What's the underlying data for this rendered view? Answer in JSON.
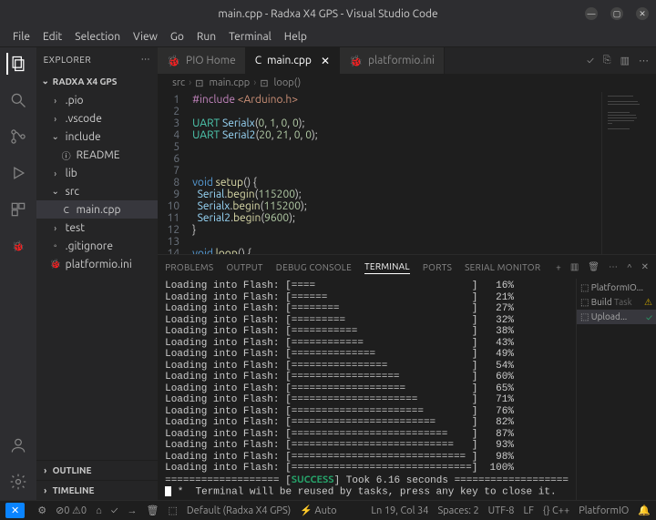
{
  "window": {
    "title": "main.cpp - Radxa X4 GPS - Visual Studio Code"
  },
  "menu": {
    "items": [
      "File",
      "Edit",
      "Selection",
      "View",
      "Go",
      "Run",
      "Terminal",
      "Help"
    ]
  },
  "sidebar": {
    "title": "EXPLORER",
    "project": "RADXA X4 GPS",
    "tree": [
      {
        "label": ".pio",
        "type": "folder",
        "chev": "›"
      },
      {
        "label": ".vscode",
        "type": "folder",
        "chev": "›"
      },
      {
        "label": "include",
        "type": "folder",
        "chev": "⌄",
        "icon": "📁"
      },
      {
        "label": "README",
        "type": "file",
        "indent": 1,
        "icon": "ⓘ"
      },
      {
        "label": "lib",
        "type": "folder",
        "chev": "›"
      },
      {
        "label": "src",
        "type": "folder",
        "chev": "⌄"
      },
      {
        "label": "main.cpp",
        "type": "file",
        "indent": 1,
        "selected": true,
        "icon": "C"
      },
      {
        "label": "test",
        "type": "folder",
        "chev": "›"
      },
      {
        "label": ".gitignore",
        "type": "file",
        "icon": "◦"
      },
      {
        "label": "platformio.ini",
        "type": "file",
        "icon": "🐞"
      }
    ],
    "bottom": {
      "outline": "OUTLINE",
      "timeline": "TIMELINE"
    }
  },
  "tabs": [
    {
      "label": "PIO Home",
      "icon": "🐞",
      "active": false
    },
    {
      "label": "main.cpp",
      "icon": "C",
      "active": true,
      "closable": true
    },
    {
      "label": "platformio.ini",
      "icon": "🐞",
      "active": false
    }
  ],
  "breadcrumb": {
    "parts": [
      "src",
      "main.cpp",
      "loop()"
    ]
  },
  "code": {
    "lineStart": 1,
    "lines": [
      "#include <Arduino.h>",
      "",
      "UART Serialx(0, 1, 0, 0);",
      "UART Serial2(20, 21, 0, 0);",
      "",
      "",
      "",
      "void setup() {",
      "  Serial.begin(115200);",
      "  Serialx.begin(115200);",
      "  Serial2.begin(9600);",
      "}",
      "",
      "void loop() {"
    ],
    "colors": {
      "keyword": "#569cd6",
      "function": "#dcdcaa",
      "type": "#4ec9b0",
      "number": "#b5cea8",
      "preproc": "#c586c0",
      "string": "#ce9178",
      "identifier": "#9cdcfe",
      "background": "#1e1e1e",
      "gutter": "#6e7681"
    }
  },
  "panel": {
    "tabs": [
      "PROBLEMS",
      "OUTPUT",
      "DEBUG CONSOLE",
      "TERMINAL",
      "PORTS",
      "SERIAL MONITOR"
    ],
    "active": "TERMINAL",
    "sideTasks": [
      {
        "label": "PlatformIO...",
        "icon": ""
      },
      {
        "label": "Build",
        "sub": "Task",
        "status": "warn"
      },
      {
        "label": "Upload...",
        "status": "ok",
        "selected": true
      }
    ]
  },
  "terminal": {
    "flash": [
      {
        "bar": "====",
        "pct": "16%"
      },
      {
        "bar": "======",
        "pct": "21%"
      },
      {
        "bar": "========",
        "pct": "27%"
      },
      {
        "bar": "=========",
        "pct": "32%"
      },
      {
        "bar": "===========",
        "pct": "38%"
      },
      {
        "bar": "============",
        "pct": "43%"
      },
      {
        "bar": "==============",
        "pct": "49%"
      },
      {
        "bar": "================",
        "pct": "54%"
      },
      {
        "bar": "==================",
        "pct": "60%"
      },
      {
        "bar": "===================",
        "pct": "65%"
      },
      {
        "bar": "=====================",
        "pct": "71%"
      },
      {
        "bar": "======================",
        "pct": "76%"
      },
      {
        "bar": "========================",
        "pct": "82%"
      },
      {
        "bar": "==========================",
        "pct": "87%"
      },
      {
        "bar": "===========================",
        "pct": "93%"
      },
      {
        "bar": "=============================",
        "pct": "98%"
      },
      {
        "bar": "==============================",
        "pct": "100%"
      }
    ],
    "prefix": "Loading into Flash: [",
    "barWidth": 30,
    "success": {
      "label": "SUCCESS",
      "rest": "] Took 6.16 seconds",
      "deco": "==================="
    },
    "tail": " *  Terminal will be reused by tasks, press any key to close it."
  },
  "status": {
    "left": [
      "⚙",
      "⊘0 ⚠0",
      "⌂",
      "✓",
      "→",
      "🗑",
      "⬚",
      "Default (Radxa X4 GPS)",
      "⚡ Auto"
    ],
    "right": [
      "Ln 19, Col 34",
      "Spaces: 2",
      "UTF-8",
      "LF",
      "{} C++",
      "PlatformIO",
      "🔔"
    ]
  }
}
